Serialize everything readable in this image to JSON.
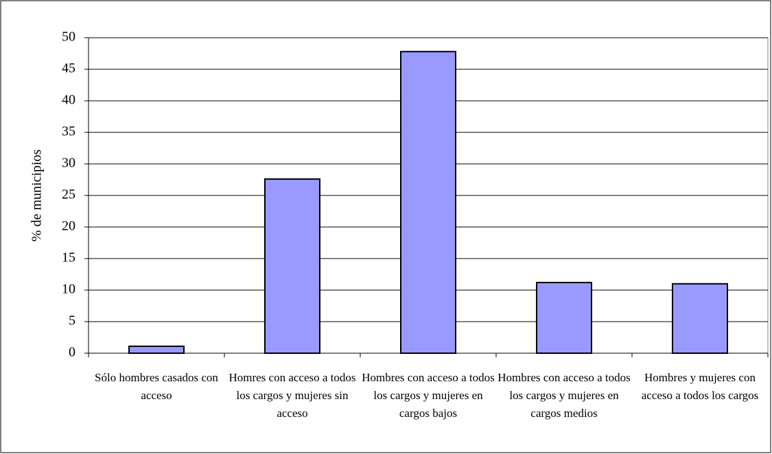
{
  "chart_data": {
    "type": "bar",
    "y_label": "% de municipios",
    "categories": [
      "Sólo hombres casados con acceso",
      "Homres con acceso a todos los cargos y mujeres sin acceso",
      "Hombres con acceso a todos los cargos y mujeres en cargos bajos",
      "Hombres con acceso a todos los cargos y mujeres en cargos medios",
      "Hombres y mujeres con acceso a todos los cargos"
    ],
    "values": [
      1.1,
      27.6,
      47.8,
      11.2,
      11.0
    ],
    "color": "#9999ff",
    "ylim": [
      0,
      50
    ],
    "yticks": [
      0,
      5,
      10,
      15,
      20,
      25,
      30,
      35,
      40,
      45,
      50
    ],
    "grid": true
  }
}
